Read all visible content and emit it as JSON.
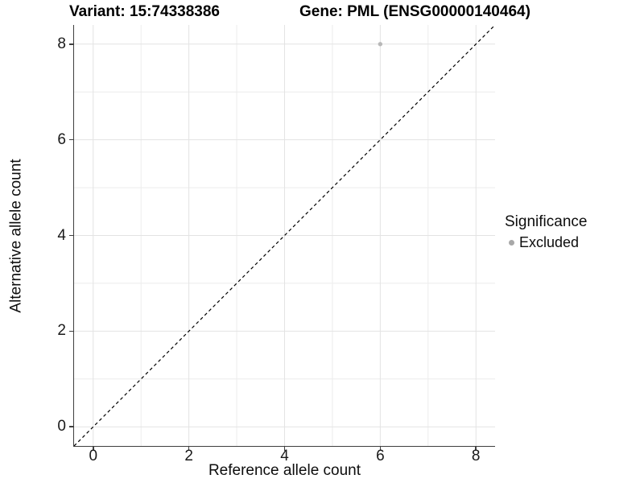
{
  "titles": {
    "variant": "Variant: 15:74338386",
    "gene": "Gene: PML (ENSG00000140464)"
  },
  "chart_data": {
    "type": "scatter",
    "title": "Variant: 15:74338386   Gene: PML (ENSG00000140464)",
    "xlabel": "Reference allele count",
    "ylabel": "Alternative allele count",
    "xlim": [
      -0.4,
      8.4
    ],
    "ylim": [
      -0.4,
      8.4
    ],
    "xticks": [
      0,
      2,
      4,
      6,
      8
    ],
    "yticks": [
      0,
      2,
      4,
      6,
      8
    ],
    "minor_ticks": [
      1,
      3,
      5,
      7
    ],
    "grid": true,
    "points": [
      {
        "x": 6,
        "y": 8,
        "series": "Excluded"
      }
    ],
    "reference_line": {
      "type": "identity",
      "style": "dashed",
      "color": "#000000"
    },
    "legend": {
      "title": "Significance",
      "position": "right",
      "entries": [
        {
          "label": "Excluded",
          "color": "#aeaeae",
          "marker": "circle"
        }
      ]
    }
  },
  "colors": {
    "background": "#ffffff",
    "grid_major": "#e3e3e3",
    "grid_minor": "#ececec",
    "axis_line": "#3f3f3f",
    "tick_text": "#1a1a1a",
    "title_text": "#000000",
    "point": "#b8b8b8",
    "reference_line": "#000000"
  }
}
